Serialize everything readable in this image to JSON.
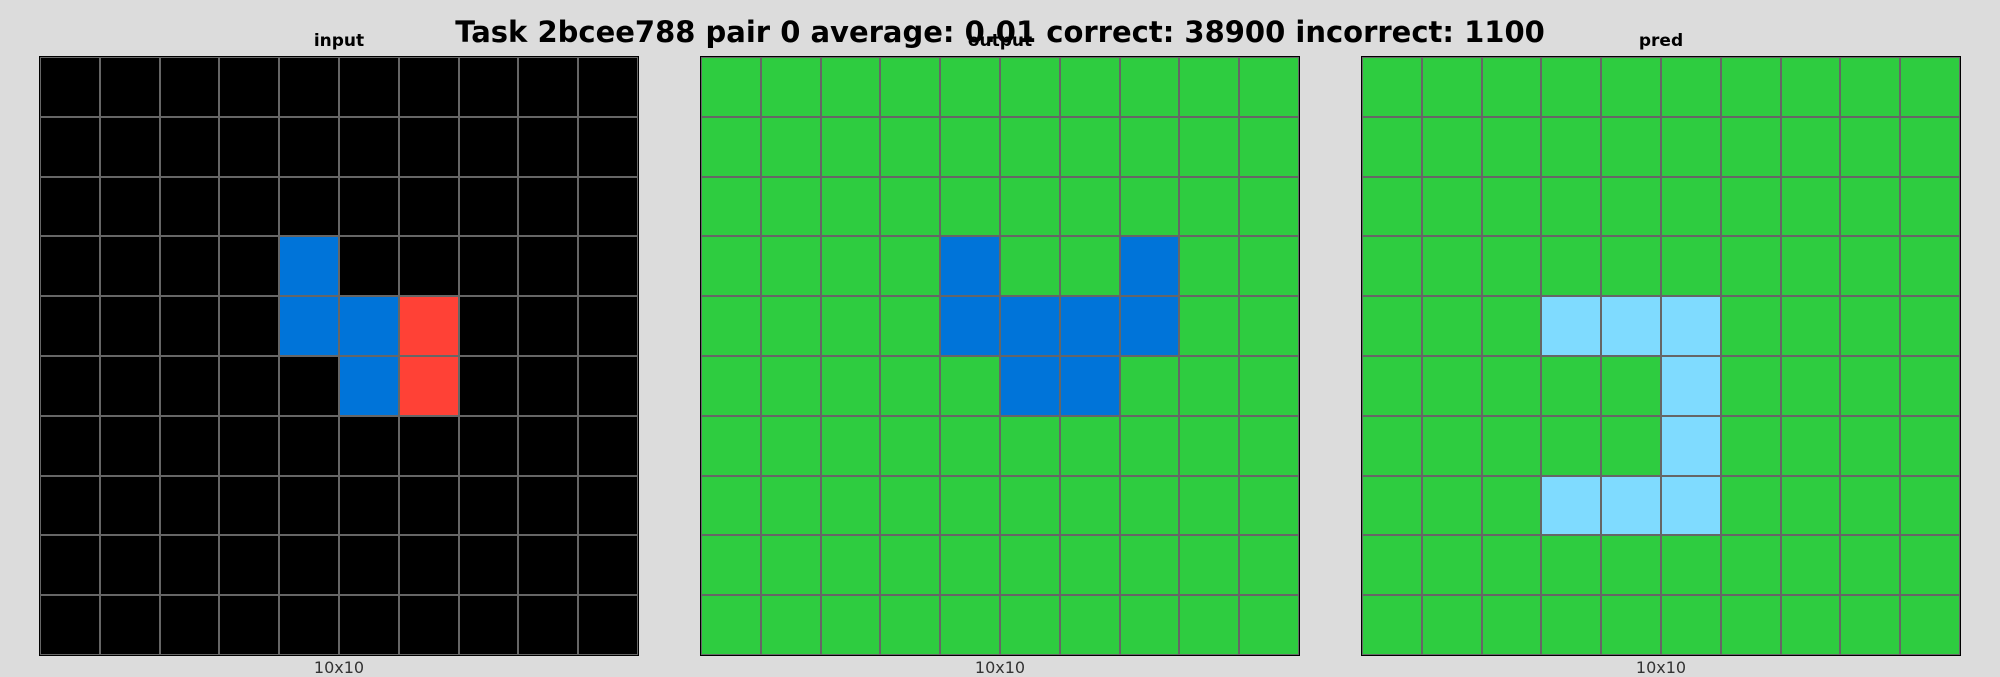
{
  "title": "Task 2bcee788 pair 0 average: 0.01 correct: 38900 incorrect: 1100",
  "palette": {
    "0": "#000000",
    "1": "#0074d9",
    "2": "#ff4136",
    "3": "#2ecc40",
    "8": "#7fdbff"
  },
  "panels": [
    {
      "label": "input",
      "caption": "10x10",
      "grid": [
        [
          0,
          0,
          0,
          0,
          0,
          0,
          0,
          0,
          0,
          0
        ],
        [
          0,
          0,
          0,
          0,
          0,
          0,
          0,
          0,
          0,
          0
        ],
        [
          0,
          0,
          0,
          0,
          0,
          0,
          0,
          0,
          0,
          0
        ],
        [
          0,
          0,
          0,
          0,
          1,
          0,
          0,
          0,
          0,
          0
        ],
        [
          0,
          0,
          0,
          0,
          1,
          1,
          2,
          0,
          0,
          0
        ],
        [
          0,
          0,
          0,
          0,
          0,
          1,
          2,
          0,
          0,
          0
        ],
        [
          0,
          0,
          0,
          0,
          0,
          0,
          0,
          0,
          0,
          0
        ],
        [
          0,
          0,
          0,
          0,
          0,
          0,
          0,
          0,
          0,
          0
        ],
        [
          0,
          0,
          0,
          0,
          0,
          0,
          0,
          0,
          0,
          0
        ],
        [
          0,
          0,
          0,
          0,
          0,
          0,
          0,
          0,
          0,
          0
        ]
      ]
    },
    {
      "label": "output",
      "caption": "10x10",
      "grid": [
        [
          3,
          3,
          3,
          3,
          3,
          3,
          3,
          3,
          3,
          3
        ],
        [
          3,
          3,
          3,
          3,
          3,
          3,
          3,
          3,
          3,
          3
        ],
        [
          3,
          3,
          3,
          3,
          3,
          3,
          3,
          3,
          3,
          3
        ],
        [
          3,
          3,
          3,
          3,
          1,
          3,
          3,
          1,
          3,
          3
        ],
        [
          3,
          3,
          3,
          3,
          1,
          1,
          1,
          1,
          3,
          3
        ],
        [
          3,
          3,
          3,
          3,
          3,
          1,
          1,
          3,
          3,
          3
        ],
        [
          3,
          3,
          3,
          3,
          3,
          3,
          3,
          3,
          3,
          3
        ],
        [
          3,
          3,
          3,
          3,
          3,
          3,
          3,
          3,
          3,
          3
        ],
        [
          3,
          3,
          3,
          3,
          3,
          3,
          3,
          3,
          3,
          3
        ],
        [
          3,
          3,
          3,
          3,
          3,
          3,
          3,
          3,
          3,
          3
        ]
      ]
    },
    {
      "label": "pred",
      "caption": "10x10",
      "grid": [
        [
          3,
          3,
          3,
          3,
          3,
          3,
          3,
          3,
          3,
          3
        ],
        [
          3,
          3,
          3,
          3,
          3,
          3,
          3,
          3,
          3,
          3
        ],
        [
          3,
          3,
          3,
          3,
          3,
          3,
          3,
          3,
          3,
          3
        ],
        [
          3,
          3,
          3,
          3,
          3,
          3,
          3,
          3,
          3,
          3
        ],
        [
          3,
          3,
          3,
          8,
          8,
          8,
          3,
          3,
          3,
          3
        ],
        [
          3,
          3,
          3,
          3,
          3,
          8,
          3,
          3,
          3,
          3
        ],
        [
          3,
          3,
          3,
          3,
          3,
          8,
          3,
          3,
          3,
          3
        ],
        [
          3,
          3,
          3,
          8,
          8,
          8,
          3,
          3,
          3,
          3
        ],
        [
          3,
          3,
          3,
          3,
          3,
          3,
          3,
          3,
          3,
          3
        ],
        [
          3,
          3,
          3,
          3,
          3,
          3,
          3,
          3,
          3,
          3
        ]
      ]
    }
  ]
}
